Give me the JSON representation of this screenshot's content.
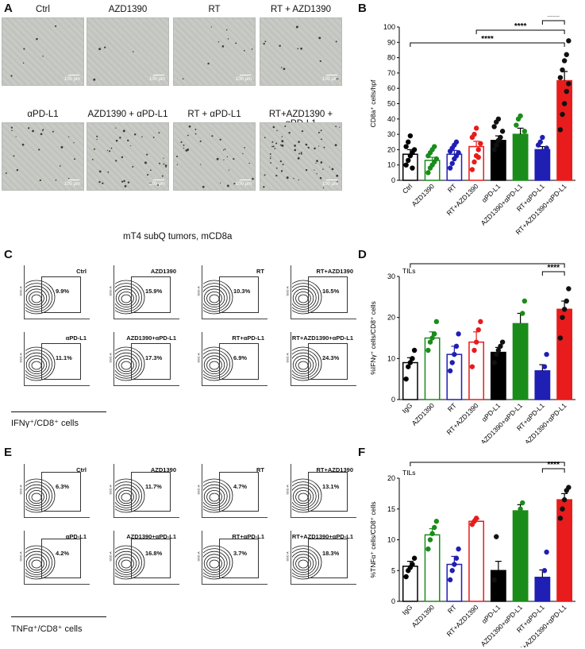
{
  "panels": {
    "A": {
      "letter": "A",
      "labels": [
        "Ctrl",
        "AZD1390",
        "RT",
        "RT + AZD1390",
        "αPD-L1",
        "AZD1390 + αPD-L1",
        "RT + αPD-L1",
        "RT+AZD1390 + αPD-L1"
      ],
      "scale_label": "100 μm",
      "caption": "mT4 subQ tumors, mCD8a"
    },
    "C": {
      "letter": "C",
      "gates": [
        {
          "name": "Ctrl",
          "pct": "9.9%"
        },
        {
          "name": "AZD1390",
          "pct": "15.9%"
        },
        {
          "name": "RT",
          "pct": "10.3%"
        },
        {
          "name": "RT+AZD1390",
          "pct": "16.5%"
        },
        {
          "name": "αPD-L1",
          "pct": "11.1%"
        },
        {
          "name": "AZD1390+αPD-L1",
          "pct": "17.3%"
        },
        {
          "name": "RT+αPD-L1",
          "pct": "6.9%"
        },
        {
          "name": "RT+AZD1390+αPD-L1",
          "pct": "24.3%"
        }
      ],
      "axis_label": "IFNγ⁺/CD8⁺ cells"
    },
    "E": {
      "letter": "E",
      "gates": [
        {
          "name": "Ctrl",
          "pct": "6.3%"
        },
        {
          "name": "AZD1390",
          "pct": "11.7%"
        },
        {
          "name": "RT",
          "pct": "4.7%"
        },
        {
          "name": "RT+AZD1390",
          "pct": "13.1%"
        },
        {
          "name": "αPD-L1",
          "pct": "4.2%"
        },
        {
          "name": "AZD1390+αPD-L1",
          "pct": "16.8%"
        },
        {
          "name": "RT+αPD-L1",
          "pct": "3.7%"
        },
        {
          "name": "RT+AZD1390+αPD-L1",
          "pct": "18.3%"
        }
      ],
      "axis_label": "TNFα⁺/CD8⁺ cells"
    }
  },
  "chart_data": [
    {
      "panel": "B",
      "type": "bar",
      "ylabel": "CD8a⁺ cells/hpf",
      "ylim": [
        0,
        100
      ],
      "yticks": [
        0,
        10,
        20,
        30,
        40,
        50,
        60,
        70,
        80,
        90,
        100
      ],
      "categories": [
        "Ctrl",
        "AZD1390",
        "RT",
        "RT+AZD1390",
        "αPD-L1",
        "AZD1390+αPD-L1",
        "RT+αPD-L1",
        "RT+AZD1390+αPD-L1"
      ],
      "values": [
        17,
        13,
        17,
        22,
        26,
        30,
        20,
        65
      ],
      "errors": [
        3,
        2,
        2.5,
        3.5,
        3,
        4,
        2,
        6
      ],
      "colors": [
        "#000000",
        "#1a8c1a",
        "#1f1fb4",
        "#e81c1c",
        "#000000",
        "#1a8c1a",
        "#1f1fb4",
        "#e81c1c"
      ],
      "points": [
        [
          10,
          13,
          16,
          18,
          20,
          22,
          25,
          29,
          8
        ],
        [
          5,
          8,
          10,
          12,
          14,
          16,
          18,
          20,
          22
        ],
        [
          8,
          11,
          14,
          16,
          18,
          19,
          21,
          23,
          25
        ],
        [
          7,
          12,
          16,
          20,
          24,
          28,
          30,
          34,
          15
        ],
        [
          20,
          23,
          26,
          28,
          32,
          35,
          38,
          40
        ],
        [
          12,
          18,
          24,
          28,
          32,
          36,
          40,
          42,
          20
        ],
        [
          12,
          15,
          17,
          19,
          21,
          23,
          25,
          28,
          16
        ],
        [
          33,
          43,
          50,
          58,
          63,
          67,
          72,
          78,
          82,
          91
        ]
      ],
      "brackets": [
        {
          "from": 0,
          "to": 7,
          "label": "****"
        },
        {
          "from": 3,
          "to": 7,
          "label": "****"
        },
        {
          "from": 6,
          "to": 7,
          "label": "****"
        }
      ]
    },
    {
      "panel": "D",
      "type": "bar",
      "ylabel": "%IFNγ⁺ cells/CD8⁺ cells",
      "annotation": "TILs",
      "ylim": [
        0,
        30
      ],
      "yticks": [
        0,
        10,
        20,
        30
      ],
      "categories": [
        "IgG",
        "AZD1390",
        "RT",
        "RT+AZD1390",
        "αPD-L1",
        "AZD1390+αPD-L1",
        "RT+αPD-L1",
        "RT+AZD1390+αPD-L1"
      ],
      "values": [
        9,
        15,
        11,
        14,
        11.5,
        18.5,
        7,
        22
      ],
      "errors": [
        1.2,
        1.5,
        2,
        2.5,
        1.2,
        2.5,
        1.5,
        2
      ],
      "colors": [
        "#000000",
        "#1a8c1a",
        "#1f1fb4",
        "#e81c1c",
        "#000000",
        "#1a8c1a",
        "#1f1fb4",
        "#e81c1c"
      ],
      "points": [
        [
          5,
          8,
          9,
          10,
          12
        ],
        [
          12,
          14,
          15,
          16,
          19
        ],
        [
          7,
          9,
          11,
          13,
          16
        ],
        [
          8,
          12,
          14,
          17,
          19
        ],
        [
          9,
          11,
          12,
          13,
          14
        ],
        [
          13,
          16,
          18,
          21,
          24
        ],
        [
          4,
          5,
          6,
          8,
          11
        ],
        [
          15,
          20,
          22,
          24,
          27
        ]
      ],
      "brackets": [
        {
          "from": 0,
          "to": 7,
          "label": "***"
        },
        {
          "from": 6,
          "to": 7,
          "label": "****"
        }
      ]
    },
    {
      "panel": "F",
      "type": "bar",
      "ylabel": "%TNFα⁺ cells/CD8⁺ cells",
      "annotation": "TILs",
      "ylim": [
        0,
        20
      ],
      "yticks": [
        0,
        5,
        10,
        15,
        20
      ],
      "categories": [
        "IgG",
        "AZD1390",
        "RT",
        "RT+AZD1390",
        "αPD-L1",
        "AZD1390+αPD-L1",
        "RT+αPD-L1",
        "RT+AZD1390+αPD-L1"
      ],
      "values": [
        5.7,
        10.8,
        6,
        13,
        5,
        14.7,
        3.9,
        16.5
      ],
      "errors": [
        0.8,
        1,
        1.3,
        0.4,
        1.5,
        1,
        1.2,
        1
      ],
      "colors": [
        "#000000",
        "#1a8c1a",
        "#1f1fb4",
        "#e81c1c",
        "#000000",
        "#1a8c1a",
        "#1f1fb4",
        "#e81c1c"
      ],
      "points": [
        [
          4,
          5,
          5.5,
          6,
          7
        ],
        [
          8.5,
          10,
          11,
          12,
          13
        ],
        [
          3.5,
          5,
          6,
          7,
          8.5
        ],
        [
          12.5,
          13,
          13.5
        ],
        [
          3.5,
          10.5
        ],
        [
          12.5,
          14,
          15,
          16
        ],
        [
          1.5,
          2.5,
          3.5,
          5,
          8
        ],
        [
          13.5,
          15,
          16.5,
          18,
          18.5
        ]
      ],
      "brackets": [
        {
          "from": 0,
          "to": 7,
          "label": "****"
        },
        {
          "from": 6,
          "to": 7,
          "label": "****"
        }
      ]
    }
  ]
}
